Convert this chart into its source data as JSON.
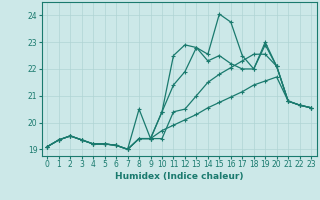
{
  "xlabel": "Humidex (Indice chaleur)",
  "xlim": [
    -0.5,
    23.5
  ],
  "ylim": [
    18.75,
    24.5
  ],
  "xticks": [
    0,
    1,
    2,
    3,
    4,
    5,
    6,
    7,
    8,
    9,
    10,
    11,
    12,
    13,
    14,
    15,
    16,
    17,
    18,
    19,
    20,
    21,
    22,
    23
  ],
  "yticks": [
    19,
    20,
    21,
    22,
    23,
    24
  ],
  "bg_color": "#cce8e8",
  "grid_color": "#b0d4d4",
  "line_color": "#1a7a6e",
  "lines": [
    [
      0,
      1,
      2,
      3,
      4,
      5,
      6,
      7,
      8,
      9,
      10,
      11,
      12,
      13,
      14,
      15,
      16,
      17,
      18,
      19,
      20,
      21,
      22,
      23
    ],
    [
      19.1,
      19.35,
      19.5,
      19.35,
      19.2,
      19.2,
      19.15,
      19.0,
      19.4,
      19.4,
      20.4,
      21.4,
      21.9,
      22.8,
      22.55,
      24.05,
      23.75,
      22.5,
      22.0,
      22.9,
      22.1,
      20.8,
      20.65,
      20.55
    ],
    [
      0,
      1,
      2,
      3,
      4,
      5,
      6,
      7,
      8,
      9,
      10,
      11,
      12,
      13,
      14,
      15,
      16,
      17,
      18,
      19,
      20,
      21,
      22,
      23
    ],
    [
      19.1,
      19.35,
      19.5,
      19.35,
      19.2,
      19.2,
      19.15,
      19.0,
      19.4,
      19.4,
      20.4,
      22.5,
      22.9,
      22.8,
      22.3,
      22.5,
      22.2,
      22.0,
      22.0,
      23.0,
      22.1,
      20.8,
      20.65,
      20.55
    ],
    [
      0,
      1,
      2,
      3,
      4,
      5,
      6,
      7,
      8,
      9,
      10,
      11,
      12,
      13,
      14,
      15,
      16,
      17,
      18,
      19,
      20,
      21,
      22,
      23
    ],
    [
      19.1,
      19.35,
      19.5,
      19.35,
      19.2,
      19.2,
      19.15,
      19.0,
      20.5,
      19.4,
      19.4,
      20.4,
      20.5,
      21.0,
      21.5,
      21.8,
      22.05,
      22.3,
      22.55,
      22.55,
      22.1,
      20.8,
      20.65,
      20.55
    ],
    [
      0,
      1,
      2,
      3,
      4,
      5,
      6,
      7,
      8,
      9,
      10,
      11,
      12,
      13,
      14,
      15,
      16,
      17,
      18,
      19,
      20,
      21,
      22,
      23
    ],
    [
      19.1,
      19.35,
      19.5,
      19.35,
      19.2,
      19.2,
      19.15,
      19.0,
      19.4,
      19.4,
      19.7,
      19.9,
      20.1,
      20.3,
      20.55,
      20.75,
      20.95,
      21.15,
      21.4,
      21.55,
      21.7,
      20.8,
      20.65,
      20.55
    ]
  ]
}
